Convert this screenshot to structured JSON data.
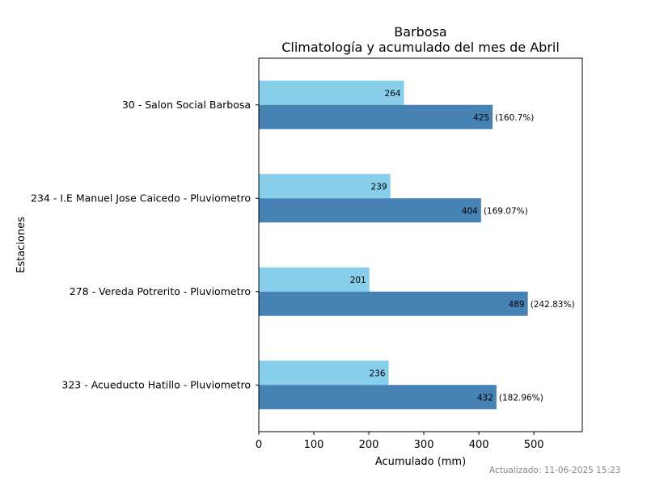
{
  "chart_data": {
    "type": "bar",
    "orientation": "horizontal",
    "title": "Barbosa",
    "subtitle": "Climatología y acumulado del mes de Abril",
    "xlabel": "Acumulado (mm)",
    "ylabel": "Estaciones",
    "xlim": [
      0,
      588
    ],
    "xticks": [
      "0",
      "100",
      "200",
      "300",
      "400",
      "500"
    ],
    "grid": false,
    "categories": [
      "30 - Salon Social Barbosa",
      "234 - I.E Manuel Jose Caicedo - Pluviometro",
      "278 - Vereda Potrerito - Pluviometro",
      "323 - Acueducto Hatillo - Pluviometro"
    ],
    "series": [
      {
        "values": [
          264,
          239,
          201,
          236
        ],
        "color": "#87ceeb"
      },
      {
        "values": [
          425,
          404,
          489,
          432
        ],
        "color": "#4682b4",
        "annotations": [
          "(160.7%)",
          "(169.07%)",
          "(242.83%)",
          "(182.96%)"
        ]
      }
    ]
  },
  "footer": {
    "updated": "Actualizado: 11-06-2025 15:23"
  }
}
